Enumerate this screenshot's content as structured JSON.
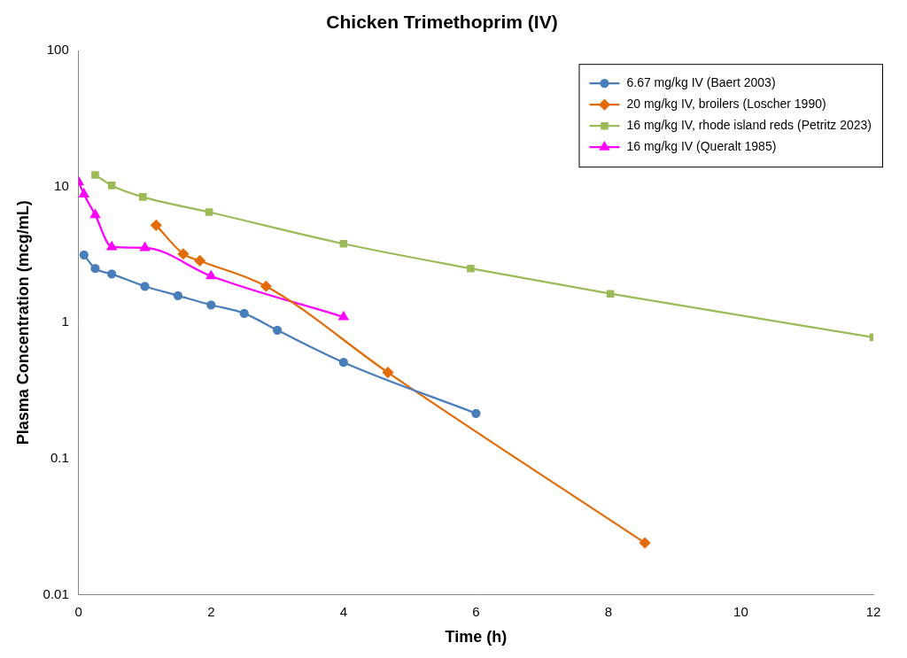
{
  "chart_data": {
    "type": "line",
    "title": "Chicken Trimethoprim (IV)",
    "x_label": "Time (h)",
    "y_label": "Plasma Concentration (mcg/mL)",
    "log": "y",
    "grid": false,
    "legend": "upper right",
    "xlim": [
      0,
      12
    ],
    "xticks": [
      0,
      2,
      4,
      6,
      8,
      10,
      12
    ],
    "ylim": [
      0.01,
      100
    ],
    "yticks": [
      0.01,
      0.1,
      1,
      10,
      100
    ],
    "series": [
      {
        "name": "6.67 mg/kg IV (Baert 2003)",
        "color": "#4a7ebb",
        "marker": "circle",
        "x": [
          0.08,
          0.25,
          0.5,
          1,
          1.5,
          2,
          2.5,
          3,
          4,
          6
        ],
        "values": [
          3.15,
          2.5,
          2.28,
          1.85,
          1.58,
          1.35,
          1.17,
          0.88,
          0.51,
          0.215
        ]
      },
      {
        "name": "20 mg/kg IV, broilers (Loscher 1990)",
        "color": "#e36c0a",
        "marker": "diamond",
        "x": [
          1.17,
          1.58,
          1.83,
          2.83,
          4.67,
          8.55
        ],
        "values": [
          5.2,
          3.2,
          2.85,
          1.85,
          0.43,
          0.024
        ]
      },
      {
        "name": "16 mg/kg IV, rhode island reds (Petritz 2023)",
        "color": "#9bbb59",
        "marker": "square",
        "x": [
          0.25,
          0.5,
          0.97,
          1.97,
          4,
          5.92,
          8.03,
          12
        ],
        "values": [
          12.2,
          10.2,
          8.4,
          6.5,
          3.8,
          2.5,
          1.63,
          0.78
        ]
      },
      {
        "name": "16 mg/kg IV (Queralt 1985)",
        "color": "#ff00ff",
        "marker": "triangle",
        "x": [
          0,
          0.08,
          0.25,
          0.5,
          1,
          2,
          4
        ],
        "values": [
          10.8,
          8.8,
          6.2,
          3.6,
          3.55,
          2.2,
          1.1
        ]
      }
    ]
  }
}
